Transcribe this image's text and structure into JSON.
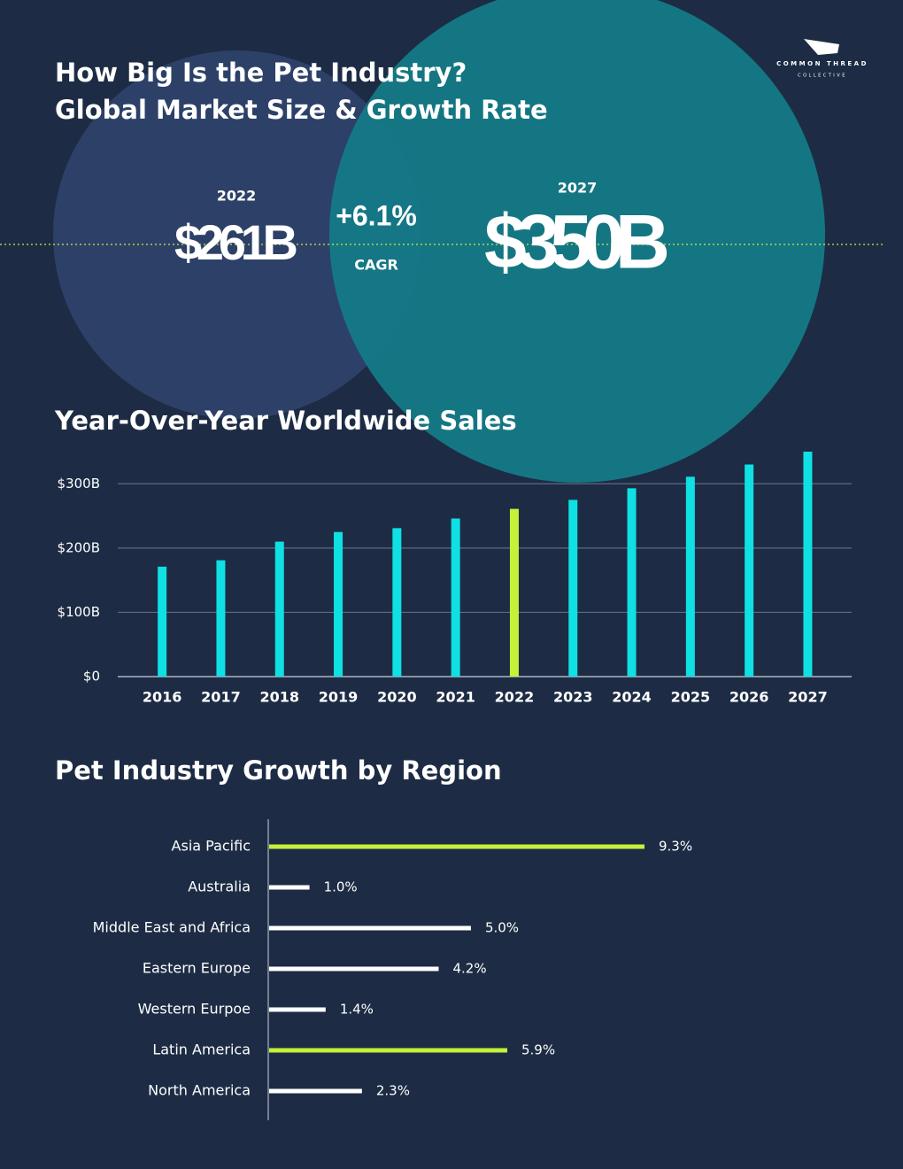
{
  "header": {
    "title_line1": "How Big Is the Pet Industry?",
    "title_line2": "Global Market Size & Growth Rate",
    "logo_top": "COMMON THREAD",
    "logo_bottom": "COLLECTIVE"
  },
  "hero": {
    "year_start": "2022",
    "value_start": "$261B",
    "growth": "+6.1%",
    "growth_label": "CAGR",
    "year_end": "2027",
    "value_end": "$350B"
  },
  "chart_data": [
    {
      "type": "bar",
      "title": "Year-Over-Year Worldwide Sales",
      "categories": [
        "2016",
        "2017",
        "2018",
        "2019",
        "2020",
        "2021",
        "2022",
        "2023",
        "2024",
        "2025",
        "2026",
        "2027"
      ],
      "values": [
        171,
        181,
        210,
        225,
        231,
        246,
        261,
        275,
        293,
        311,
        330,
        350
      ],
      "colors": [
        "#0fe0e3",
        "#0fe0e3",
        "#0fe0e3",
        "#0fe0e3",
        "#0fe0e3",
        "#0fe0e3",
        "#c6f03a",
        "#0fe0e3",
        "#0fe0e3",
        "#0fe0e3",
        "#0fe0e3",
        "#0fe0e3"
      ],
      "ylim": [
        0,
        350
      ],
      "yticks": [
        {
          "value": 0,
          "label": "$0"
        },
        {
          "value": 100,
          "label": "$100B"
        },
        {
          "value": 200,
          "label": "$200B"
        },
        {
          "value": 300,
          "label": "$300B"
        }
      ],
      "grid": true
    },
    {
      "type": "hbar",
      "title": "Pet Industry Growth by Region",
      "categories": [
        "Asia Pacific",
        "Australia",
        "Middle East and Africa",
        "Eastern Europe",
        "Western Eurpoe",
        "Latin America",
        "North America"
      ],
      "values": [
        9.3,
        1.0,
        5.0,
        4.2,
        1.4,
        5.9,
        2.3
      ],
      "value_labels": [
        "9.3%",
        "1.0%",
        "5.0%",
        "4.2%",
        "1.4%",
        "5.9%",
        "2.3%"
      ],
      "colors": [
        "#c6f03a",
        "#ffffff",
        "#ffffff",
        "#ffffff",
        "#ffffff",
        "#c6f03a",
        "#ffffff"
      ]
    }
  ]
}
